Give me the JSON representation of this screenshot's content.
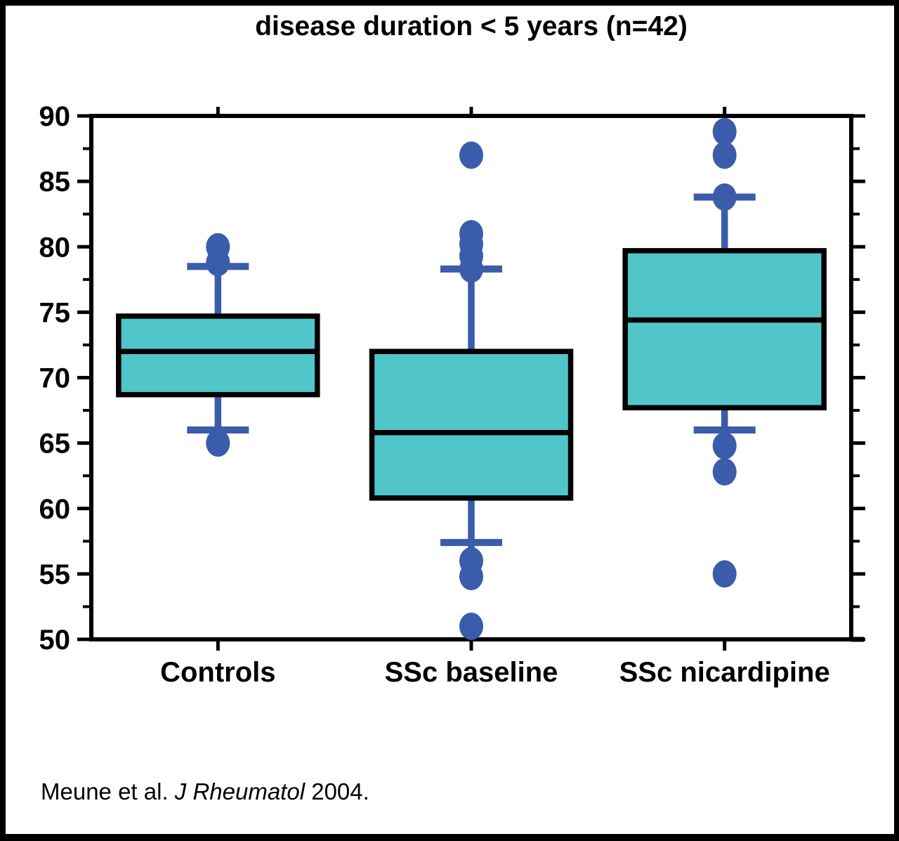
{
  "page": {
    "background": "#ffffff",
    "border_color": "#000000"
  },
  "chart_data": {
    "type": "box",
    "title": "disease duration < 5 years (n=42)",
    "categories": [
      "Controls",
      "SSc baseline",
      "SSc nicardipine"
    ],
    "xlabel": "",
    "ylabel": "",
    "ylim": [
      50,
      90
    ],
    "ytick_step": 5,
    "ytick_minor_step": 2.5,
    "ytick_labels": [
      "50",
      "55",
      "60",
      "65",
      "70",
      "75",
      "80",
      "85",
      "90"
    ],
    "grid": false,
    "mirrored_ticks": true,
    "legend": "none",
    "series": [
      {
        "name": "Controls",
        "q1": 68.7,
        "median": 72.0,
        "q3": 74.7,
        "whisker_low": 66.0,
        "whisker_high": 78.5,
        "outliers_high": [
          80.0,
          78.8
        ],
        "outliers_low": [
          65.0
        ]
      },
      {
        "name": "SSc baseline",
        "q1": 60.8,
        "median": 65.8,
        "q3": 72.0,
        "whisker_low": 57.4,
        "whisker_high": 78.3,
        "outliers_high": [
          87.0,
          81.0,
          80.2,
          79.3,
          78.3
        ],
        "outliers_low": [
          56.0,
          54.8,
          51.0
        ]
      },
      {
        "name": "SSc nicardipine",
        "q1": 67.7,
        "median": 74.4,
        "q3": 79.7,
        "whisker_low": 66.0,
        "whisker_high": 83.8,
        "outliers_high": [
          88.8,
          87.0,
          83.8
        ],
        "outliers_low": [
          64.8,
          62.8,
          55.0
        ]
      }
    ],
    "colors": {
      "box_fill": "#50C5CA",
      "box_stroke": "#000000",
      "whisker": "#3B5CAA",
      "outlier": "#3B5CAA",
      "axis": "#000000",
      "text": "#000000"
    }
  },
  "citation": {
    "authors": "Meune et al. ",
    "journal": "J Rheumatol",
    "year_suffix": " 2004."
  }
}
